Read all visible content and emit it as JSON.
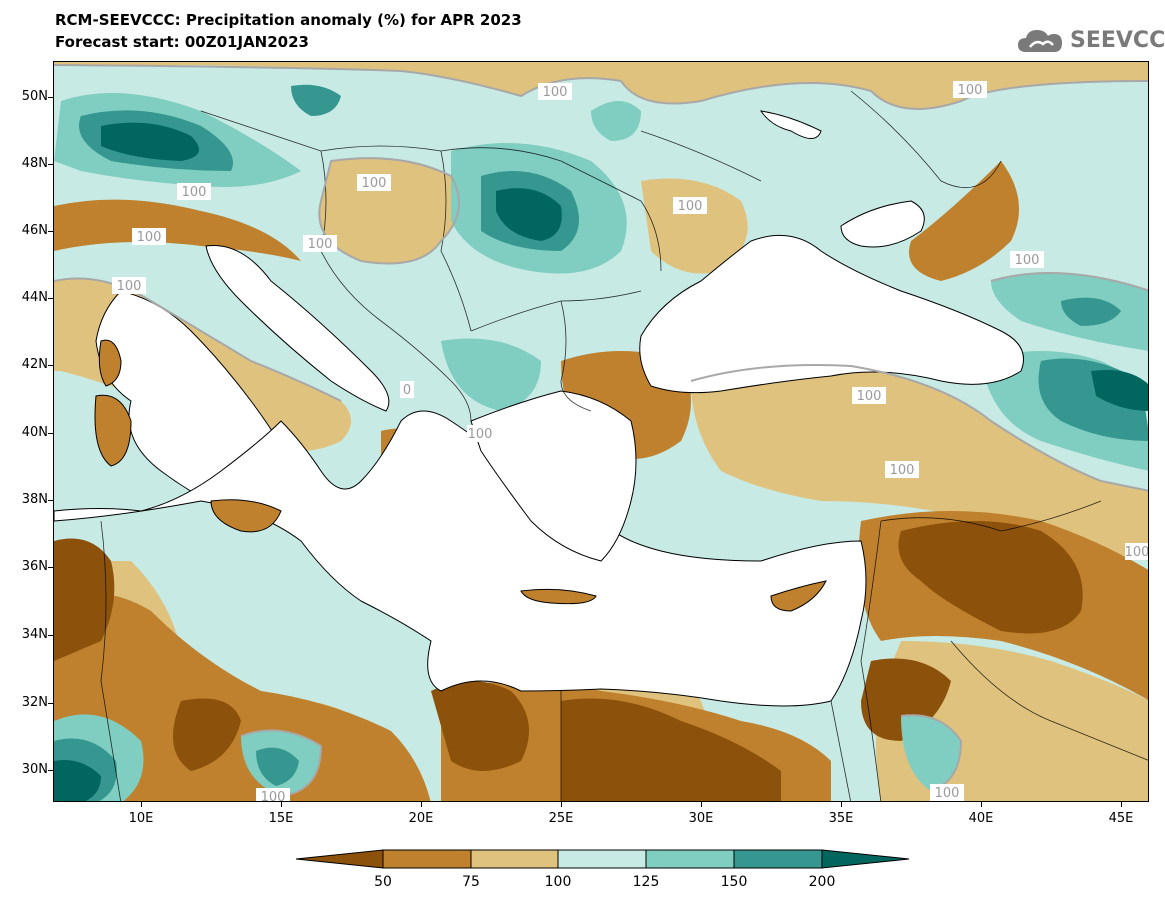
{
  "title_line1": "RCM-SEEVCCC: Precipitation anomaly (%) for APR 2023",
  "title_line2": "Forecast start: 00Z01JAN2023",
  "logo_text": "SEEVCCC",
  "logo_icon": "cloud-icon",
  "map": {
    "lat_labels": [
      "50N",
      "48N",
      "46N",
      "44N",
      "42N",
      "40N",
      "38N",
      "36N",
      "34N",
      "32N",
      "30N"
    ],
    "lon_labels": [
      "10E",
      "15E",
      "20E",
      "25E",
      "30E",
      "35E",
      "40E",
      "45E"
    ],
    "contour_label": "100",
    "contour_label_partial": "0"
  },
  "legend": {
    "levels": [
      "50",
      "75",
      "100",
      "125",
      "150",
      "200"
    ],
    "colors": [
      "#8c510a",
      "#bf812d",
      "#dfc27d",
      "#c7eae5",
      "#80cdc1",
      "#35978f",
      "#01665e"
    ]
  }
}
